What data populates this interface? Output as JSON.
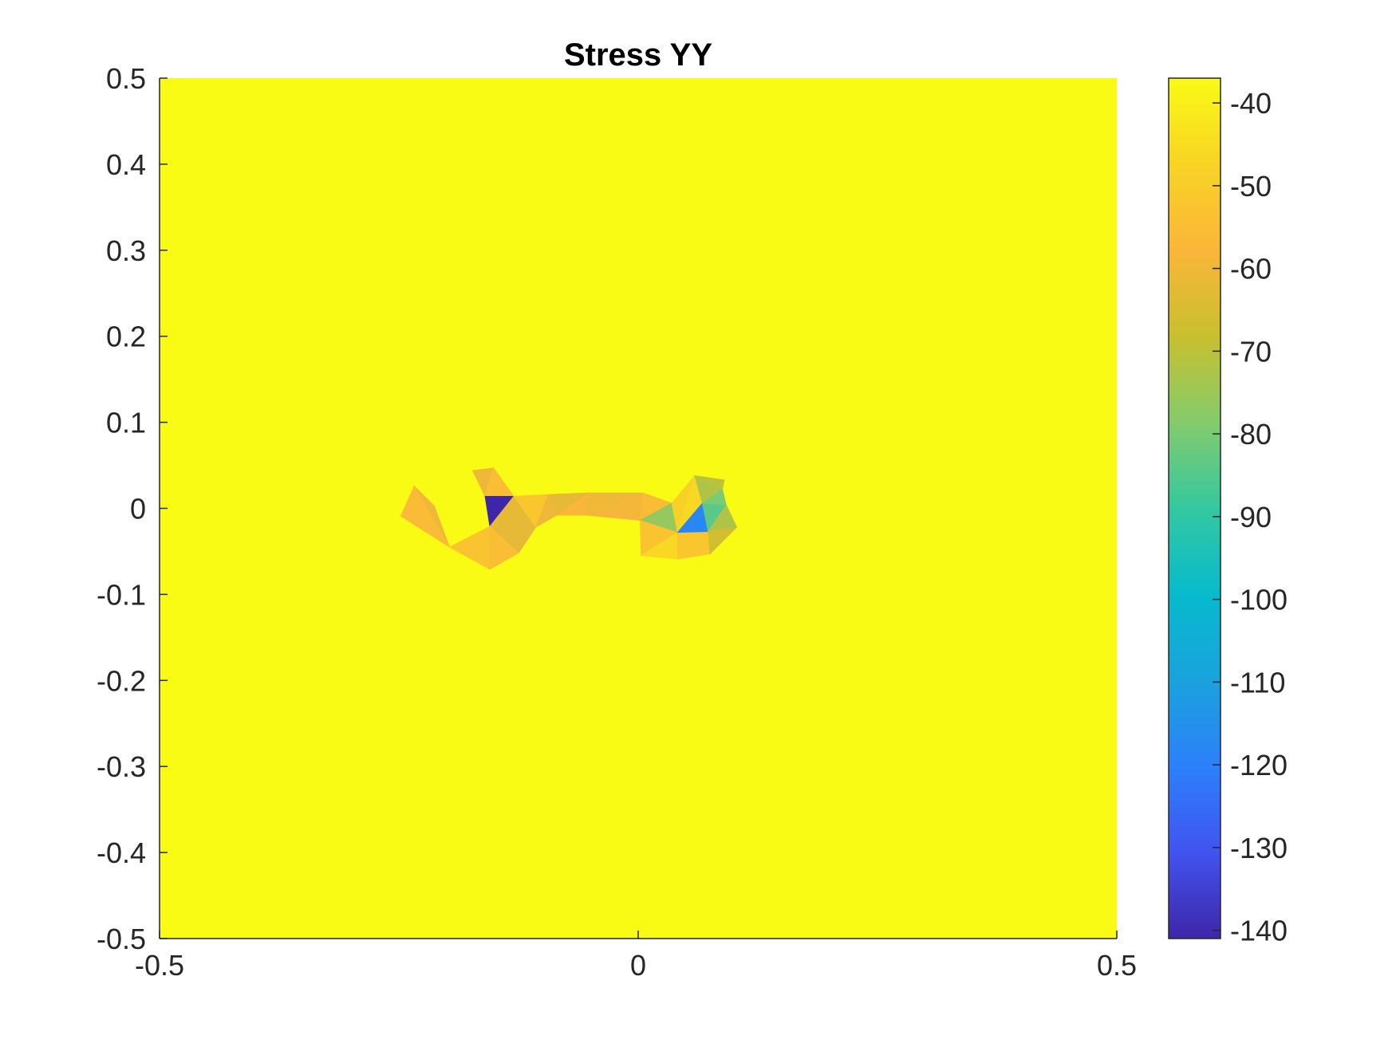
{
  "chart_data": {
    "type": "heatmap",
    "title": "Stress YY",
    "xlabel": "",
    "ylabel": "",
    "xlim": [
      -0.5,
      0.5
    ],
    "ylim": [
      -0.5,
      0.5
    ],
    "x_ticks": [
      -0.5,
      0,
      0.5
    ],
    "x_tick_labels": [
      "-0.5",
      "0",
      "0.5"
    ],
    "y_ticks": [
      0.5,
      0.4,
      0.3,
      0.2,
      0.1,
      0,
      -0.1,
      -0.2,
      -0.3,
      -0.4,
      -0.5
    ],
    "y_tick_labels": [
      "0.5",
      "0.4",
      "0.3",
      "0.2",
      "0.1",
      "0",
      "-0.1",
      "-0.2",
      "-0.3",
      "-0.4",
      "-0.5"
    ],
    "background_value": -37,
    "colorbar": {
      "range": [
        -141,
        -37
      ],
      "ticks": [
        -40,
        -50,
        -60,
        -70,
        -80,
        -90,
        -100,
        -110,
        -120,
        -130,
        -140
      ],
      "tick_labels": [
        "-40",
        "-50",
        "-60",
        "-70",
        "-80",
        "-90",
        "-100",
        "-110",
        "-120",
        "-130",
        "-140"
      ],
      "colormap": [
        "#3E26A8",
        "#4253F0",
        "#2D80FB",
        "#1AA2DD",
        "#07BACC",
        "#34C8A0",
        "#84CB6D",
        "#C8C02F",
        "#FBB63A",
        "#F8D325",
        "#F9FB15"
      ]
    },
    "triangles": [
      {
        "points": [
          [
            -0.234,
            0.026
          ],
          [
            -0.213,
            0.003
          ],
          [
            -0.197,
            -0.045
          ]
        ],
        "value": -60
      },
      {
        "points": [
          [
            -0.234,
            0.026
          ],
          [
            -0.248,
            -0.009
          ],
          [
            -0.197,
            -0.045
          ]
        ],
        "value": -56
      },
      {
        "points": [
          [
            -0.173,
            0.044
          ],
          [
            -0.151,
            0.047
          ],
          [
            -0.16,
            0.014
          ]
        ],
        "value": -60
      },
      {
        "points": [
          [
            -0.151,
            0.047
          ],
          [
            -0.16,
            0.014
          ],
          [
            -0.13,
            0.014
          ]
        ],
        "value": -55
      },
      {
        "points": [
          [
            -0.16,
            0.014
          ],
          [
            -0.13,
            0.014
          ],
          [
            -0.155,
            -0.021
          ]
        ],
        "value": -141
      },
      {
        "points": [
          [
            -0.13,
            0.014
          ],
          [
            -0.155,
            -0.021
          ],
          [
            -0.107,
            -0.022
          ]
        ],
        "value": -62
      },
      {
        "points": [
          [
            -0.155,
            -0.021
          ],
          [
            -0.107,
            -0.022
          ],
          [
            -0.125,
            -0.052
          ]
        ],
        "value": -62
      },
      {
        "points": [
          [
            -0.197,
            -0.045
          ],
          [
            -0.155,
            -0.021
          ],
          [
            -0.155,
            -0.071
          ]
        ],
        "value": -53
      },
      {
        "points": [
          [
            -0.155,
            -0.021
          ],
          [
            -0.125,
            -0.052
          ],
          [
            -0.155,
            -0.071
          ]
        ],
        "value": -55
      },
      {
        "points": [
          [
            -0.13,
            0.014
          ],
          [
            -0.107,
            -0.022
          ],
          [
            -0.094,
            0.016
          ]
        ],
        "value": -52
      },
      {
        "points": [
          [
            -0.094,
            0.016
          ],
          [
            -0.107,
            -0.022
          ],
          [
            -0.085,
            -0.008
          ]
        ],
        "value": -60
      },
      {
        "points": [
          [
            -0.094,
            0.016
          ],
          [
            -0.052,
            0.018
          ],
          [
            -0.085,
            -0.008
          ]
        ],
        "value": -62
      },
      {
        "points": [
          [
            -0.052,
            0.018
          ],
          [
            -0.085,
            -0.008
          ],
          [
            -0.054,
            -0.008
          ]
        ],
        "value": -58
      },
      {
        "points": [
          [
            -0.052,
            0.018
          ],
          [
            -0.054,
            -0.008
          ],
          [
            0.005,
            0.018
          ]
        ],
        "value": -60
      },
      {
        "points": [
          [
            0.005,
            0.018
          ],
          [
            -0.054,
            -0.008
          ],
          [
            0.002,
            -0.014
          ]
        ],
        "value": -59
      },
      {
        "points": [
          [
            0.002,
            -0.014
          ],
          [
            0.005,
            0.018
          ],
          [
            0.035,
            0.006
          ]
        ],
        "value": -56
      },
      {
        "points": [
          [
            0.002,
            -0.014
          ],
          [
            0.035,
            0.006
          ],
          [
            0.041,
            -0.028
          ]
        ],
        "value": -76
      },
      {
        "points": [
          [
            0.002,
            -0.014
          ],
          [
            0.041,
            -0.028
          ],
          [
            0.003,
            -0.055
          ]
        ],
        "value": -53
      },
      {
        "points": [
          [
            0.003,
            -0.055
          ],
          [
            0.041,
            -0.028
          ],
          [
            0.041,
            -0.059
          ]
        ],
        "value": -46
      },
      {
        "points": [
          [
            0.041,
            -0.028
          ],
          [
            0.041,
            -0.059
          ],
          [
            0.075,
            -0.053
          ]
        ],
        "value": -52
      },
      {
        "points": [
          [
            0.041,
            -0.028
          ],
          [
            0.075,
            -0.053
          ],
          [
            0.073,
            -0.027
          ]
        ],
        "value": -52
      },
      {
        "points": [
          [
            0.035,
            0.006
          ],
          [
            0.041,
            -0.028
          ],
          [
            0.059,
            0.038
          ]
        ],
        "value": -48
      },
      {
        "points": [
          [
            0.041,
            -0.028
          ],
          [
            0.059,
            0.038
          ],
          [
            0.067,
            0.006
          ]
        ],
        "value": -46
      },
      {
        "points": [
          [
            0.041,
            -0.028
          ],
          [
            0.067,
            0.006
          ],
          [
            0.073,
            -0.027
          ]
        ],
        "value": -118
      },
      {
        "points": [
          [
            0.067,
            0.006
          ],
          [
            0.073,
            -0.027
          ],
          [
            0.092,
            0.004
          ]
        ],
        "value": -84
      },
      {
        "points": [
          [
            0.073,
            -0.027
          ],
          [
            0.092,
            0.004
          ],
          [
            0.103,
            -0.022
          ]
        ],
        "value": -72
      },
      {
        "points": [
          [
            0.073,
            -0.027
          ],
          [
            0.103,
            -0.022
          ],
          [
            0.075,
            -0.053
          ]
        ],
        "value": -66
      },
      {
        "points": [
          [
            0.059,
            0.038
          ],
          [
            0.067,
            0.006
          ],
          [
            0.088,
            0.022
          ]
        ],
        "value": -72
      },
      {
        "points": [
          [
            0.067,
            0.006
          ],
          [
            0.088,
            0.022
          ],
          [
            0.092,
            0.004
          ]
        ],
        "value": -80
      },
      {
        "points": [
          [
            0.059,
            0.038
          ],
          [
            0.088,
            0.022
          ],
          [
            0.09,
            0.033
          ]
        ],
        "value": -70
      }
    ]
  }
}
